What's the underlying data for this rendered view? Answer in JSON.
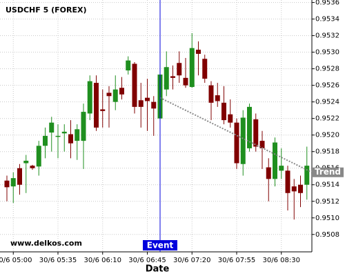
{
  "chart_data": {
    "type": "candlestick",
    "title": "USDCHF 5 (FOREX)",
    "watermark": "www.delkos.com",
    "x_label": "Date",
    "categories": [
      null,
      "30/6 05:00",
      null,
      null,
      null,
      null,
      null,
      null,
      "30/6 05:35",
      null,
      null,
      null,
      null,
      null,
      null,
      "30/6 06:10",
      null,
      null,
      null,
      null,
      null,
      null,
      "30/6 06:45",
      null,
      null,
      null,
      null,
      null,
      null,
      "30/6 07:20",
      null,
      null,
      null,
      null,
      null,
      null,
      "30/6 07:55",
      null,
      null,
      null,
      null,
      null,
      null,
      "30/6 08:30",
      null,
      null,
      null,
      null
    ],
    "open": [
      0.95145,
      0.95138,
      0.9516,
      0.95166,
      0.95163,
      0.95162,
      0.95187,
      0.95203,
      0.95198,
      0.95202,
      0.95201,
      0.95193,
      0.95193,
      0.95226,
      0.95263,
      0.95231,
      0.95251,
      0.9524,
      0.95257,
      0.95278,
      0.95286,
      0.95242,
      0.95245,
      0.9524,
      0.9522,
      0.95255,
      0.95271,
      0.95287,
      0.95269,
      0.95258,
      0.95303,
      0.95292,
      0.9526,
      0.95248,
      0.95239,
      0.95225,
      0.95215,
      0.95165,
      0.95184,
      0.95219,
      0.95193,
      0.95161,
      0.95147,
      0.95157,
      0.95157,
      0.95138,
      0.9514,
      0.9514
    ],
    "high": [
      0.95151,
      0.95155,
      0.95165,
      0.95176,
      0.95164,
      0.95193,
      0.95209,
      0.95222,
      0.95213,
      0.95213,
      0.95218,
      0.95213,
      0.95238,
      0.95272,
      0.95272,
      0.95255,
      0.95259,
      0.95272,
      0.9527,
      0.95295,
      0.95288,
      0.95263,
      0.95268,
      0.95247,
      0.9528,
      0.95301,
      0.95284,
      0.95301,
      0.95293,
      0.95323,
      0.95313,
      0.95297,
      0.95265,
      0.95263,
      0.95259,
      0.95243,
      0.9522,
      0.9523,
      0.95238,
      0.95226,
      0.95205,
      0.95172,
      0.95197,
      0.95184,
      0.95163,
      0.95147,
      0.95151,
      0.95186
    ],
    "low": [
      0.9512,
      0.95118,
      0.95128,
      0.9513,
      0.95158,
      0.95151,
      0.95172,
      0.9518,
      0.95172,
      0.9518,
      0.95172,
      0.9517,
      0.95159,
      0.95218,
      0.95205,
      0.95209,
      0.95209,
      0.9523,
      0.95243,
      0.95273,
      0.95226,
      0.95209,
      0.95205,
      0.95199,
      0.95213,
      0.95247,
      0.95255,
      0.95263,
      0.95257,
      0.95257,
      0.95272,
      0.95263,
      0.95218,
      0.95234,
      0.95213,
      0.95209,
      0.95159,
      0.95151,
      0.9518,
      0.9518,
      0.95159,
      0.9512,
      0.95138,
      0.95147,
      0.95109,
      0.95098,
      0.95113,
      0.95122
    ],
    "close": [
      0.95137,
      0.95148,
      0.9514,
      0.95169,
      0.9516,
      0.95187,
      0.95199,
      0.95215,
      0.95199,
      0.95204,
      0.9519,
      0.95207,
      0.95228,
      0.95265,
      0.95209,
      0.95229,
      0.95247,
      0.95255,
      0.95249,
      0.9529,
      0.95234,
      0.95234,
      0.95241,
      0.95232,
      0.95273,
      0.95282,
      0.95269,
      0.95272,
      0.9526,
      0.95305,
      0.95298,
      0.95268,
      0.95239,
      0.95241,
      0.95218,
      0.95215,
      0.95166,
      0.95221,
      0.95234,
      0.95186,
      0.95184,
      0.95147,
      0.95191,
      0.95163,
      0.9513,
      0.95132,
      0.9513,
      0.95163
    ],
    "up_color": "#1f8f1f",
    "down_color": "#800000",
    "ylim": [
      0.95059,
      0.95363
    ],
    "yticks": [
      0.9508,
      {
        "value": 0.951,
        "label": "0.9510"
      },
      0.9512,
      0.9514,
      0.9516,
      0.9518,
      {
        "value": 0.952,
        "label": "0.9520"
      },
      0.9522,
      0.9524,
      0.9526,
      0.9528,
      {
        "value": 0.953,
        "label": "0.9530"
      },
      0.9532,
      0.9534,
      0.9536
    ],
    "grid": true,
    "event": {
      "label": "Event",
      "at": 24,
      "color": "#0000dd"
    },
    "trend": {
      "label": "Trend",
      "start": 0.95245,
      "end": 0.95155,
      "color": "#888888"
    }
  }
}
